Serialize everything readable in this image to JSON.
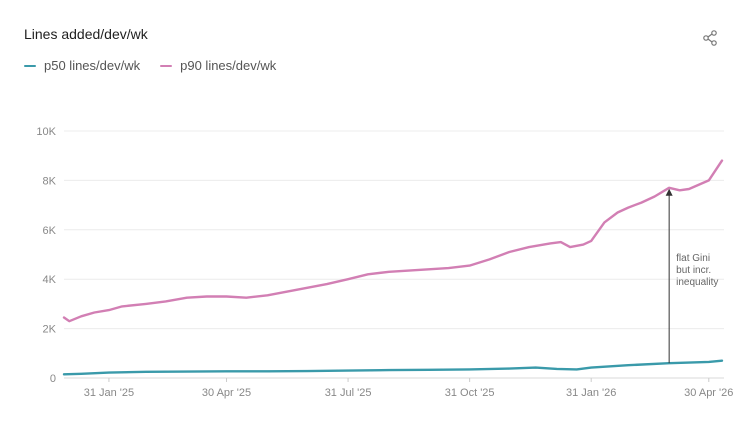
{
  "header": {
    "title": "Lines added/dev/wk",
    "share_icon": "share-icon"
  },
  "legend": [
    {
      "label": "p50 lines/dev/wk",
      "color": "#3a9aaa"
    },
    {
      "label": "p90 lines/dev/wk",
      "color": "#d27fb4"
    }
  ],
  "chart_data": {
    "type": "line",
    "title": "Lines added/dev/wk",
    "xlabel": "",
    "ylabel": "",
    "ylim": [
      0,
      10000
    ],
    "y_ticks": [
      0,
      2000,
      4000,
      6000,
      8000,
      10000
    ],
    "y_tick_labels": [
      "0",
      "2K",
      "4K",
      "6K",
      "8K",
      "10K"
    ],
    "x_range": [
      "2024-12-28",
      "2026-05-10"
    ],
    "x_ticks": [
      "2025-01-31",
      "2025-04-30",
      "2025-07-31",
      "2025-10-31",
      "2026-01-31",
      "2026-04-30"
    ],
    "x_tick_labels": [
      "31 Jan '25",
      "30 Apr '25",
      "31 Jul '25",
      "31 Oct '25",
      "31 Jan '26",
      "30 Apr '26"
    ],
    "grid": true,
    "legend_position": "top-left",
    "series": [
      {
        "name": "p50 lines/dev/wk",
        "color": "#3a9aaa",
        "points": [
          [
            "2024-12-28",
            150
          ],
          [
            "2025-01-10",
            170
          ],
          [
            "2025-01-31",
            220
          ],
          [
            "2025-02-28",
            250
          ],
          [
            "2025-03-31",
            260
          ],
          [
            "2025-04-30",
            270
          ],
          [
            "2025-05-31",
            270
          ],
          [
            "2025-06-30",
            280
          ],
          [
            "2025-07-31",
            300
          ],
          [
            "2025-08-31",
            320
          ],
          [
            "2025-09-30",
            330
          ],
          [
            "2025-10-31",
            350
          ],
          [
            "2025-11-30",
            380
          ],
          [
            "2025-12-20",
            420
          ],
          [
            "2026-01-05",
            370
          ],
          [
            "2026-01-20",
            350
          ],
          [
            "2026-01-31",
            420
          ],
          [
            "2026-02-28",
            520
          ],
          [
            "2026-03-31",
            600
          ],
          [
            "2026-04-30",
            650
          ],
          [
            "2026-05-10",
            700
          ]
        ]
      },
      {
        "name": "p90 lines/dev/wk",
        "color": "#d27fb4",
        "points": [
          [
            "2024-12-28",
            2450
          ],
          [
            "2025-01-01",
            2300
          ],
          [
            "2025-01-10",
            2500
          ],
          [
            "2025-01-20",
            2650
          ],
          [
            "2025-01-31",
            2750
          ],
          [
            "2025-02-10",
            2900
          ],
          [
            "2025-02-28",
            3000
          ],
          [
            "2025-03-15",
            3100
          ],
          [
            "2025-03-31",
            3250
          ],
          [
            "2025-04-15",
            3300
          ],
          [
            "2025-04-30",
            3300
          ],
          [
            "2025-05-15",
            3250
          ],
          [
            "2025-05-31",
            3350
          ],
          [
            "2025-06-15",
            3500
          ],
          [
            "2025-06-30",
            3650
          ],
          [
            "2025-07-15",
            3800
          ],
          [
            "2025-07-31",
            4000
          ],
          [
            "2025-08-15",
            4200
          ],
          [
            "2025-08-31",
            4300
          ],
          [
            "2025-09-15",
            4350
          ],
          [
            "2025-09-30",
            4400
          ],
          [
            "2025-10-15",
            4450
          ],
          [
            "2025-10-31",
            4550
          ],
          [
            "2025-11-15",
            4800
          ],
          [
            "2025-11-30",
            5100
          ],
          [
            "2025-12-15",
            5300
          ],
          [
            "2025-12-31",
            5450
          ],
          [
            "2026-01-08",
            5500
          ],
          [
            "2026-01-15",
            5300
          ],
          [
            "2026-01-25",
            5400
          ],
          [
            "2026-01-31",
            5550
          ],
          [
            "2026-02-10",
            6300
          ],
          [
            "2026-02-20",
            6700
          ],
          [
            "2026-02-28",
            6900
          ],
          [
            "2026-03-10",
            7100
          ],
          [
            "2026-03-20",
            7350
          ],
          [
            "2026-03-31",
            7700
          ],
          [
            "2026-04-08",
            7600
          ],
          [
            "2026-04-15",
            7650
          ],
          [
            "2026-04-30",
            8000
          ],
          [
            "2026-05-10",
            8800
          ]
        ]
      }
    ],
    "annotations": [
      {
        "text_lines": [
          "flat Gini",
          "but incr.",
          "inequality"
        ],
        "x": "2026-03-31",
        "y_from": 600,
        "y_to": 7700
      }
    ]
  }
}
